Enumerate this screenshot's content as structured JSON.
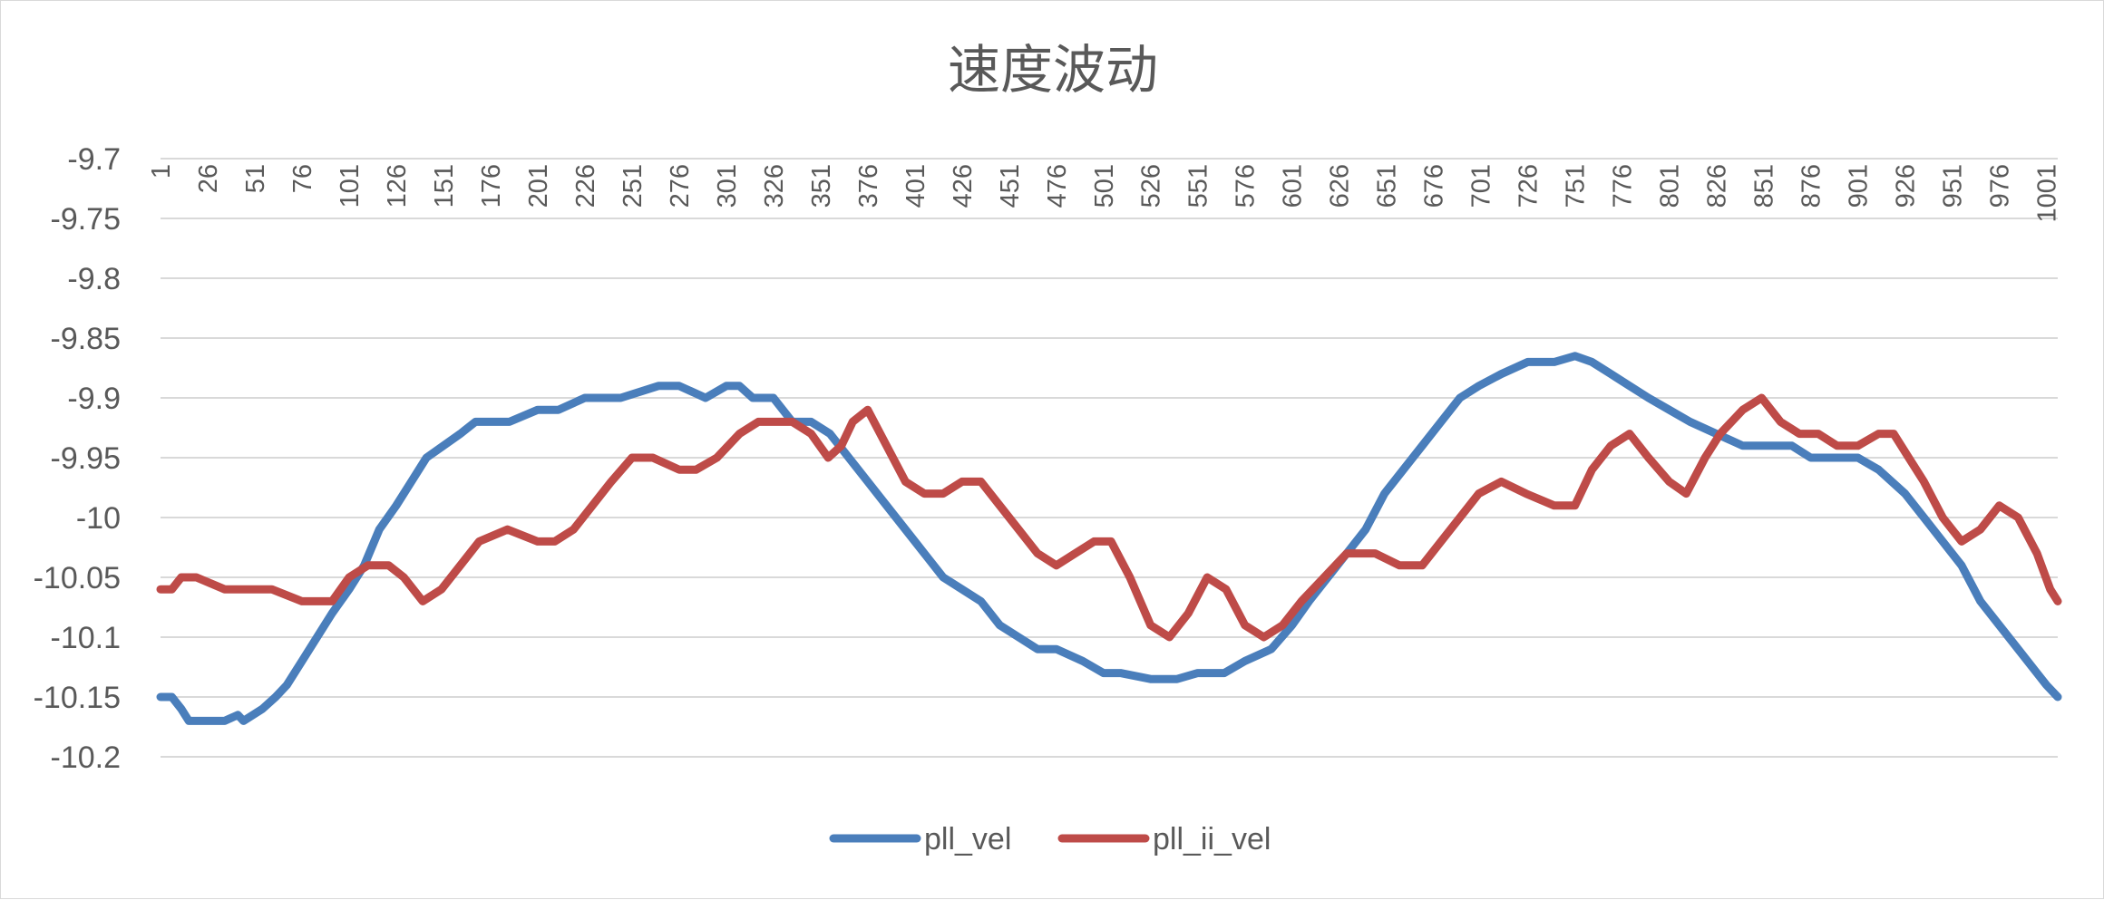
{
  "chart_data": {
    "type": "line",
    "title": "速度波动",
    "xlabel": "",
    "ylabel": "",
    "x_range": [
      1,
      1007
    ],
    "x_tick_start": 1,
    "x_tick_step": 25,
    "x_ticks": [
      1,
      26,
      51,
      76,
      101,
      126,
      151,
      176,
      201,
      226,
      251,
      276,
      301,
      326,
      351,
      376,
      401,
      426,
      451,
      476,
      501,
      526,
      551,
      576,
      601,
      626,
      651,
      676,
      701,
      726,
      751,
      776,
      801,
      826,
      851,
      876,
      901,
      926,
      951,
      976,
      1001
    ],
    "x_tick_labels": [
      "1",
      "26",
      "51",
      "76",
      "101",
      "126",
      "151",
      "176",
      "201",
      "226",
      "251",
      "276",
      "301",
      "326",
      "351",
      "376",
      "401",
      "426",
      "451",
      "476",
      "501",
      "526",
      "551",
      "576",
      "601",
      "626",
      "651",
      "676",
      "701",
      "726",
      "751",
      "776",
      "801",
      "826",
      "851",
      "876",
      "901",
      "926",
      "951",
      "976",
      "1001"
    ],
    "ylim": [
      -10.2,
      -9.7
    ],
    "y_ticks": [
      -9.7,
      -9.75,
      -9.8,
      -9.85,
      -9.9,
      -9.95,
      -10,
      -10.05,
      -10.1,
      -10.15,
      -10.2
    ],
    "y_tick_labels": [
      "-9.7",
      "-9.75",
      "-9.8",
      "-9.85",
      "-9.9",
      "-9.95",
      "-10",
      "-10.05",
      "-10.1",
      "-10.15",
      "-10.2"
    ],
    "x_axis_position": "top",
    "grid": true,
    "legend": "bottom",
    "series": [
      {
        "name": "pll_vel",
        "color": "#4a7ebb",
        "x": [
          1,
          7,
          12,
          16,
          24,
          35,
          42,
          45,
          55,
          62,
          68,
          76,
          84,
          92,
          101,
          109,
          117,
          126,
          134,
          142,
          151,
          160,
          168,
          176,
          186,
          201,
          212,
          226,
          245,
          265,
          276,
          290,
          301,
          308,
          315,
          326,
          336,
          346,
          356,
          366,
          376,
          386,
          396,
          406,
          416,
          426,
          436,
          446,
          456,
          466,
          476,
          490,
          501,
          510,
          526,
          540,
          551,
          565,
          576,
          590,
          601,
          610,
          620,
          630,
          640,
          650,
          660,
          670,
          680,
          690,
          700,
          712,
          726,
          740,
          751,
          760,
          770,
          780,
          790,
          801,
          812,
          826,
          840,
          851,
          866,
          876,
          890,
          901,
          912,
          926,
          936,
          946,
          956,
          966,
          976,
          986,
          996,
          1001,
          1007
        ],
        "y": [
          -10.15,
          -10.15,
          -10.16,
          -10.17,
          -10.17,
          -10.17,
          -10.165,
          -10.17,
          -10.16,
          -10.15,
          -10.14,
          -10.12,
          -10.1,
          -10.08,
          -10.06,
          -10.04,
          -10.01,
          -9.99,
          -9.97,
          -9.95,
          -9.94,
          -9.93,
          -9.92,
          -9.92,
          -9.92,
          -9.91,
          -9.91,
          -9.9,
          -9.9,
          -9.89,
          -9.89,
          -9.9,
          -9.89,
          -9.89,
          -9.9,
          -9.9,
          -9.92,
          -9.92,
          -9.93,
          -9.95,
          -9.97,
          -9.99,
          -10.01,
          -10.03,
          -10.05,
          -10.06,
          -10.07,
          -10.09,
          -10.1,
          -10.11,
          -10.11,
          -10.12,
          -10.13,
          -10.13,
          -10.135,
          -10.135,
          -10.13,
          -10.13,
          -10.12,
          -10.11,
          -10.09,
          -10.07,
          -10.05,
          -10.03,
          -10.01,
          -9.98,
          -9.96,
          -9.94,
          -9.92,
          -9.9,
          -9.89,
          -9.88,
          -9.87,
          -9.87,
          -9.865,
          -9.87,
          -9.88,
          -9.89,
          -9.9,
          -9.91,
          -9.92,
          -9.93,
          -9.94,
          -9.94,
          -9.94,
          -9.95,
          -9.95,
          -9.95,
          -9.96,
          -9.98,
          -10.0,
          -10.02,
          -10.04,
          -10.07,
          -10.09,
          -10.11,
          -10.13,
          -10.14,
          -10.15
        ]
      },
      {
        "name": "pll_ii_vel",
        "color": "#be4b48",
        "x": [
          1,
          7,
          12,
          20,
          35,
          50,
          60,
          76,
          84,
          92,
          101,
          111,
          122,
          130,
          140,
          150,
          160,
          170,
          185,
          201,
          210,
          220,
          230,
          240,
          251,
          262,
          276,
          285,
          296,
          308,
          318,
          328,
          336,
          346,
          355,
          362,
          368,
          376,
          386,
          396,
          406,
          416,
          426,
          436,
          446,
          456,
          466,
          476,
          486,
          496,
          505,
          515,
          526,
          536,
          546,
          556,
          566,
          576,
          586,
          596,
          606,
          618,
          630,
          645,
          658,
          670,
          680,
          690,
          700,
          712,
          725,
          740,
          751,
          760,
          770,
          780,
          790,
          801,
          810,
          820,
          828,
          840,
          850,
          860,
          870,
          880,
          890,
          901,
          912,
          920,
          928,
          936,
          946,
          956,
          966,
          976,
          986,
          996,
          1003,
          1007
        ],
        "y": [
          -10.06,
          -10.06,
          -10.05,
          -10.05,
          -10.06,
          -10.06,
          -10.06,
          -10.07,
          -10.07,
          -10.07,
          -10.05,
          -10.04,
          -10.04,
          -10.05,
          -10.07,
          -10.06,
          -10.04,
          -10.02,
          -10.01,
          -10.02,
          -10.02,
          -10.01,
          -9.99,
          -9.97,
          -9.95,
          -9.95,
          -9.96,
          -9.96,
          -9.95,
          -9.93,
          -9.92,
          -9.92,
          -9.92,
          -9.93,
          -9.95,
          -9.94,
          -9.92,
          -9.91,
          -9.94,
          -9.97,
          -9.98,
          -9.98,
          -9.97,
          -9.97,
          -9.99,
          -10.01,
          -10.03,
          -10.04,
          -10.03,
          -10.02,
          -10.02,
          -10.05,
          -10.09,
          -10.1,
          -10.08,
          -10.05,
          -10.06,
          -10.09,
          -10.1,
          -10.09,
          -10.07,
          -10.05,
          -10.03,
          -10.03,
          -10.04,
          -10.04,
          -10.02,
          -10.0,
          -9.98,
          -9.97,
          -9.98,
          -9.99,
          -9.99,
          -9.96,
          -9.94,
          -9.93,
          -9.95,
          -9.97,
          -9.98,
          -9.95,
          -9.93,
          -9.91,
          -9.9,
          -9.92,
          -9.93,
          -9.93,
          -9.94,
          -9.94,
          -9.93,
          -9.93,
          -9.95,
          -9.97,
          -10.0,
          -10.02,
          -10.01,
          -9.99,
          -10.0,
          -10.03,
          -10.06,
          -10.07
        ]
      }
    ]
  }
}
